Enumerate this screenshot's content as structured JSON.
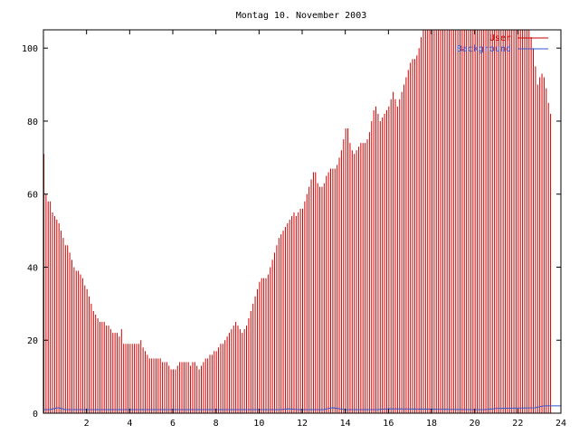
{
  "chart_data": {
    "type": "bar",
    "title": "Montag 10. November 2003",
    "xlabel": "",
    "ylabel": "",
    "xlim": [
      0,
      24
    ],
    "ylim": [
      0,
      105
    ],
    "xticks": [
      2,
      4,
      6,
      8,
      10,
      12,
      14,
      16,
      18,
      20,
      22,
      24
    ],
    "yticks": [
      0,
      20,
      40,
      60,
      80,
      100
    ],
    "legend_position": "top-right",
    "grid": false,
    "series": [
      {
        "name": "User",
        "color": "#cc0000",
        "interval_hours": 0.1,
        "values": [
          71,
          60,
          58,
          58,
          55,
          54,
          53,
          52,
          50,
          48,
          46,
          46,
          44,
          42,
          40,
          39,
          39,
          38,
          37,
          35,
          34,
          32,
          30,
          28,
          27,
          26,
          25,
          25,
          25,
          24,
          24,
          23,
          22,
          22,
          22,
          21,
          23,
          19,
          19,
          19,
          19,
          19,
          19,
          19,
          19,
          20,
          18,
          17,
          16,
          15,
          15,
          15,
          15,
          15,
          15,
          14,
          14,
          14,
          13,
          12,
          12,
          12,
          13,
          14,
          14,
          14,
          14,
          14,
          13,
          14,
          14,
          13,
          12,
          13,
          14,
          15,
          15,
          16,
          16,
          17,
          17,
          18,
          19,
          19,
          20,
          21,
          22,
          23,
          24,
          25,
          24,
          23,
          22,
          23,
          24,
          26,
          28,
          30,
          32,
          34,
          36,
          37,
          37,
          37,
          38,
          40,
          42,
          44,
          46,
          48,
          49,
          50,
          51,
          52,
          53,
          54,
          55,
          54,
          55,
          56,
          56,
          58,
          60,
          62,
          64,
          66,
          66,
          63,
          62,
          62,
          63,
          65,
          66,
          67,
          67,
          67,
          68,
          70,
          72,
          75,
          78,
          78,
          74,
          72,
          71,
          72,
          73,
          74,
          74,
          74,
          75,
          77,
          80,
          83,
          84,
          82,
          80,
          81,
          82,
          83,
          84,
          86,
          88,
          86,
          84,
          86,
          88,
          90,
          92,
          94,
          96,
          97,
          97,
          98,
          100,
          103,
          105,
          105,
          105,
          105,
          105,
          105,
          105,
          105,
          105,
          105,
          105,
          105,
          105,
          105,
          105,
          105,
          105,
          105,
          105,
          105,
          105,
          105,
          105,
          105,
          105,
          105,
          105,
          105,
          105,
          105,
          105,
          105,
          105,
          105,
          105,
          105,
          105,
          105,
          105,
          105,
          105,
          105,
          105,
          105,
          105,
          105,
          105,
          105,
          105,
          105,
          103,
          100,
          95,
          90,
          92,
          93,
          92,
          89,
          85,
          82
        ]
      },
      {
        "name": "Background",
        "color": "#3355cc",
        "points": [
          [
            0,
            1
          ],
          [
            0.3,
            1
          ],
          [
            0.7,
            1.5
          ],
          [
            1,
            1
          ],
          [
            10,
            1
          ],
          [
            11,
            1
          ],
          [
            11.4,
            1.2
          ],
          [
            11.8,
            1
          ],
          [
            13,
            1
          ],
          [
            13.4,
            1.5
          ],
          [
            14,
            1
          ],
          [
            15.5,
            1
          ],
          [
            16,
            1.2
          ],
          [
            20,
            1
          ],
          [
            20.5,
            1
          ],
          [
            21,
            1.3
          ],
          [
            22.8,
            1.5
          ],
          [
            23.2,
            2
          ],
          [
            24,
            2
          ]
        ]
      }
    ]
  }
}
